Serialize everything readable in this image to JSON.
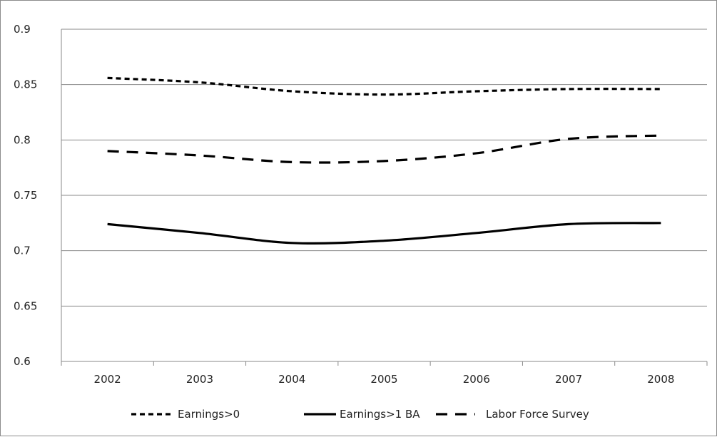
{
  "chart_data": {
    "type": "line",
    "title": "",
    "xlabel": "",
    "ylabel": "",
    "categories": [
      "2002",
      "2003",
      "2004",
      "2005",
      "2006",
      "2007",
      "2008"
    ],
    "ylim": [
      0.6,
      0.9
    ],
    "y_ticks": [
      0.6,
      0.65,
      0.7,
      0.75,
      0.8,
      0.85,
      0.9
    ],
    "y_tick_labels": [
      "0.6",
      "0.65",
      "0.7",
      "0.75",
      "0.8",
      "0.85",
      "0.9"
    ],
    "grid": true,
    "legend_position": "bottom",
    "series": [
      {
        "name": "Earnings>0",
        "style": "dotted",
        "color": "#000000",
        "values": [
          0.856,
          0.852,
          0.844,
          0.841,
          0.844,
          0.846,
          0.846
        ]
      },
      {
        "name": "Earnings>1 BA",
        "style": "solid",
        "color": "#000000",
        "values": [
          0.724,
          0.716,
          0.707,
          0.709,
          0.716,
          0.724,
          0.725
        ]
      },
      {
        "name": "Labor Force Survey",
        "style": "dashed",
        "color": "#000000",
        "values": [
          0.79,
          0.786,
          0.78,
          0.781,
          0.788,
          0.801,
          0.804
        ]
      }
    ]
  }
}
